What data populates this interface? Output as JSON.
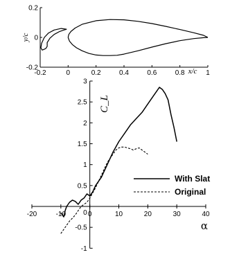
{
  "chart_data": [
    {
      "type": "line",
      "xlabel": "x/c",
      "ylabel": "y/c",
      "xlim": [
        -0.2,
        1
      ],
      "ylim": [
        -0.2,
        0.2
      ],
      "xticks": [
        "-0.2",
        "0",
        "0.2",
        "0.4",
        "0.6",
        "0.8",
        "1"
      ],
      "yticks": [
        "0.2",
        "0",
        "-0.2"
      ],
      "series": [
        {
          "x": [
            0.0,
            0.005,
            0.02,
            0.05,
            0.1,
            0.2,
            0.3,
            0.4,
            0.5,
            0.6,
            0.7,
            0.8,
            0.9,
            0.97,
            1.0
          ],
          "y": [
            0.0,
            0.02,
            0.04,
            0.063,
            0.088,
            0.112,
            0.12,
            0.118,
            0.108,
            0.093,
            0.074,
            0.053,
            0.031,
            0.014,
            0.0
          ]
        },
        {
          "x": [
            0.0,
            0.01,
            0.03,
            0.06,
            0.1,
            0.15,
            0.2,
            0.25,
            0.3,
            0.35,
            0.4,
            0.5,
            0.6,
            0.7,
            0.8,
            0.9,
            0.97,
            1.0
          ],
          "y": [
            0.0,
            -0.025,
            -0.048,
            -0.07,
            -0.09,
            -0.108,
            -0.118,
            -0.122,
            -0.122,
            -0.12,
            -0.112,
            -0.09,
            -0.065,
            -0.042,
            -0.022,
            -0.008,
            -0.002,
            0.0
          ]
        },
        {
          "x": [
            -0.01,
            -0.05,
            -0.1,
            -0.14,
            -0.17,
            -0.19,
            -0.195,
            -0.185,
            -0.16,
            -0.15,
            -0.15,
            -0.13,
            -0.1,
            -0.06,
            -0.03,
            -0.01
          ],
          "y": [
            0.055,
            0.06,
            0.05,
            0.03,
            0.0,
            -0.04,
            -0.07,
            -0.085,
            -0.075,
            -0.06,
            -0.035,
            -0.005,
            0.02,
            0.04,
            0.05,
            0.055
          ]
        }
      ]
    },
    {
      "type": "line",
      "xlabel": "α",
      "ylabel": "C_L",
      "xlim": [
        -20,
        40
      ],
      "ylim": [
        -1,
        3
      ],
      "xticks": [
        "-20",
        "-10",
        "0",
        "10",
        "20",
        "30",
        "40"
      ],
      "yticks": [
        "-1",
        "-0.5",
        "0",
        "0.5",
        "1",
        "1.5",
        "2",
        "2.5",
        "3"
      ],
      "legend": "center-right",
      "series": [
        {
          "name": "With Slat",
          "style": "solid",
          "x": [
            -10,
            -9,
            -8.5,
            -8,
            -7,
            -6,
            -5,
            -4,
            -3,
            -2,
            -1,
            0,
            1,
            2,
            3,
            4,
            5,
            6,
            8,
            10,
            12,
            14,
            16,
            18,
            20,
            22,
            23,
            24,
            25,
            26,
            27,
            28,
            29,
            30
          ],
          "y": [
            -0.15,
            -0.25,
            -0.1,
            0.0,
            0.1,
            0.15,
            0.12,
            0.05,
            0.15,
            0.2,
            0.3,
            0.25,
            0.35,
            0.5,
            0.6,
            0.7,
            0.85,
            1.0,
            1.3,
            1.55,
            1.75,
            1.95,
            2.1,
            2.25,
            2.45,
            2.65,
            2.75,
            2.85,
            2.8,
            2.7,
            2.55,
            2.2,
            1.9,
            1.55
          ]
        },
        {
          "name": "Original",
          "style": "dashed",
          "x": [
            -10,
            -9,
            -8,
            -7,
            -6,
            -5,
            -4,
            -3,
            -2,
            -1,
            0,
            2,
            4,
            6,
            7,
            8,
            9,
            10,
            11,
            12,
            13,
            14,
            15,
            16,
            17,
            18,
            19,
            20
          ],
          "y": [
            -0.65,
            -0.55,
            -0.45,
            -0.35,
            -0.28,
            -0.2,
            -0.1,
            0.0,
            0.05,
            0.1,
            0.2,
            0.45,
            0.75,
            1.05,
            1.15,
            1.25,
            1.35,
            1.4,
            1.42,
            1.42,
            1.4,
            1.38,
            1.35,
            1.38,
            1.4,
            1.35,
            1.3,
            1.25
          ]
        }
      ]
    }
  ]
}
